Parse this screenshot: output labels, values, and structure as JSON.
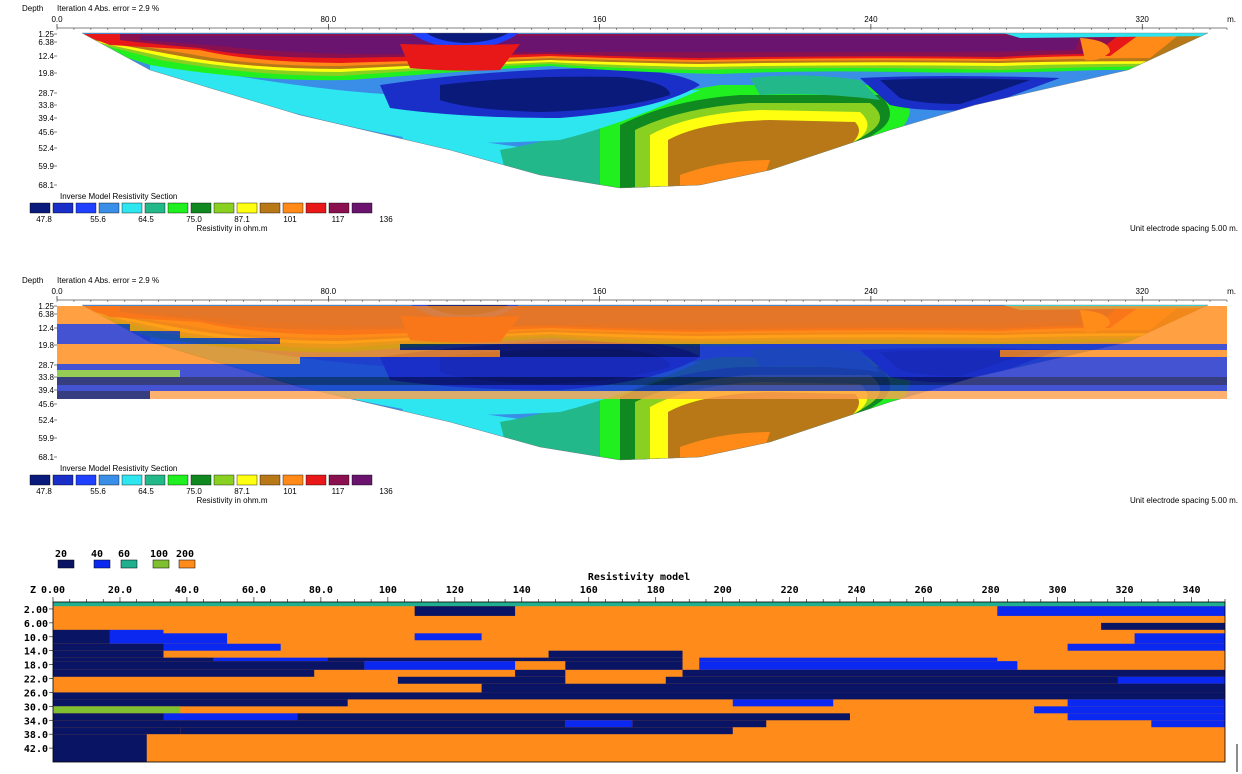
{
  "chart_data": [
    {
      "type": "heatmap",
      "header_depth": "Depth",
      "header_iter": "Iteration 4 Abs. error = 2.9 %",
      "x_ticks": [
        "0.0",
        "80.0",
        "160",
        "240",
        "320"
      ],
      "x_unit": "m.",
      "depth_ticks": [
        "1.25",
        "6.38",
        "12.4",
        "19.8",
        "28.7",
        "33.8",
        "39.4",
        "45.6",
        "52.4",
        "59.9",
        "68.1"
      ],
      "legend_title": "Inverse Model Resistivity Section",
      "legend_labels": [
        "47.8",
        "55.6",
        "64.5",
        "75.0",
        "87.1",
        "101",
        "117",
        "136"
      ],
      "legend_caption": "Resistivity in ohm.m",
      "spacing_note": "Unit electrode spacing 5.00 m.",
      "colors": [
        "#0a1a7a",
        "#1a2ec8",
        "#2040ff",
        "#3a8ee8",
        "#2ee6f0",
        "#22b88a",
        "#20f020",
        "#108a20",
        "#8ad020",
        "#ffff10",
        "#b87818",
        "#ff8a18",
        "#e81818",
        "#8a1050",
        "#6a1470"
      ],
      "overlay": false
    },
    {
      "type": "heatmap",
      "header_depth": "Depth",
      "header_iter": "Iteration 4 Abs. error = 2.9 %",
      "x_ticks": [
        "0.0",
        "80.0",
        "160",
        "240",
        "320"
      ],
      "x_unit": "m.",
      "depth_ticks": [
        "1.25",
        "6.38",
        "12.4",
        "19.8",
        "28.7",
        "33.8",
        "39.4",
        "45.6",
        "52.4",
        "59.9",
        "68.1"
      ],
      "legend_title": "Inverse Model Resistivity Section",
      "legend_labels": [
        "47.8",
        "55.6",
        "64.5",
        "75.0",
        "87.1",
        "101",
        "117",
        "136"
      ],
      "legend_caption": "Resistivity in ohm.m",
      "spacing_note": "Unit electrode spacing 5.00 m.",
      "colors": [
        "#0a1a7a",
        "#1a2ec8",
        "#2040ff",
        "#3a8ee8",
        "#2ee6f0",
        "#22b88a",
        "#20f020",
        "#108a20",
        "#8ad020",
        "#ffff10",
        "#b87818",
        "#ff8a18",
        "#e81818",
        "#8a1050",
        "#6a1470"
      ],
      "overlay": true
    },
    {
      "type": "heatmap",
      "title": "Resistivity model",
      "legend_values": [
        "20",
        "40",
        "60",
        "100",
        "200"
      ],
      "legend_colors": [
        "#0a1464",
        "#0a28f0",
        "#20b090",
        "#80c030",
        "#ff8c1a"
      ],
      "z_label": "Z",
      "x_ticks": [
        "0.00",
        "20.0",
        "40.0",
        "60.0",
        "80.0",
        "100",
        "120",
        "140",
        "160",
        "180",
        "200",
        "220",
        "240",
        "260",
        "280",
        "300",
        "320",
        "340"
      ],
      "x_range": [
        0,
        350
      ],
      "z_ticks": [
        "2.00",
        "6.00",
        "10.0",
        "14.0",
        "18.0",
        "22.0",
        "26.0",
        "30.0",
        "34.0",
        "38.0",
        "42.0"
      ],
      "z_range": [
        0,
        46
      ],
      "background_value": "200",
      "blocks": [
        {
          "x0": 0,
          "x1": 350,
          "z0": 0,
          "z1": 1.2,
          "v": "60"
        },
        {
          "x0": 108,
          "x1": 138,
          "z0": 1.2,
          "z1": 4,
          "v": "20"
        },
        {
          "x0": 282,
          "x1": 350,
          "z0": 1.2,
          "z1": 4,
          "v": "40"
        },
        {
          "x0": 313,
          "x1": 350,
          "z0": 6,
          "z1": 8,
          "v": "20"
        },
        {
          "x0": 0,
          "x1": 17,
          "z0": 8,
          "z1": 12,
          "v": "20"
        },
        {
          "x0": 17,
          "x1": 33,
          "z0": 8,
          "z1": 12,
          "v": "40"
        },
        {
          "x0": 33,
          "x1": 52,
          "z0": 9,
          "z1": 12,
          "v": "40"
        },
        {
          "x0": 108,
          "x1": 128,
          "z0": 9,
          "z1": 11,
          "v": "40"
        },
        {
          "x0": 323,
          "x1": 350,
          "z0": 9,
          "z1": 12,
          "v": "40"
        },
        {
          "x0": 0,
          "x1": 33,
          "z0": 12,
          "z1": 14,
          "v": "20"
        },
        {
          "x0": 33,
          "x1": 68,
          "z0": 12,
          "z1": 14,
          "v": "40"
        },
        {
          "x0": 303,
          "x1": 350,
          "z0": 12,
          "z1": 14,
          "v": "40"
        },
        {
          "x0": 0,
          "x1": 33,
          "z0": 14,
          "z1": 16,
          "v": "20"
        },
        {
          "x0": 148,
          "x1": 188,
          "z0": 14,
          "z1": 16,
          "v": "20"
        },
        {
          "x0": 0,
          "x1": 48,
          "z0": 16,
          "z1": 17,
          "v": "20"
        },
        {
          "x0": 48,
          "x1": 82,
          "z0": 16,
          "z1": 17,
          "v": "40"
        },
        {
          "x0": 82,
          "x1": 148,
          "z0": 16,
          "z1": 17,
          "v": "20"
        },
        {
          "x0": 148,
          "x1": 188,
          "z0": 16,
          "z1": 17,
          "v": "20"
        },
        {
          "x0": 193,
          "x1": 282,
          "z0": 16,
          "z1": 17,
          "v": "40"
        },
        {
          "x0": 0,
          "x1": 93,
          "z0": 17,
          "z1": 19.5,
          "v": "20"
        },
        {
          "x0": 93,
          "x1": 138,
          "z0": 17,
          "z1": 19.5,
          "v": "40"
        },
        {
          "x0": 153,
          "x1": 188,
          "z0": 17,
          "z1": 19.5,
          "v": "20"
        },
        {
          "x0": 193,
          "x1": 288,
          "z0": 17,
          "z1": 19.5,
          "v": "40"
        },
        {
          "x0": 0,
          "x1": 78,
          "z0": 19.5,
          "z1": 21.5,
          "v": "20"
        },
        {
          "x0": 138,
          "x1": 153,
          "z0": 19.5,
          "z1": 21.5,
          "v": "20"
        },
        {
          "x0": 188,
          "x1": 350,
          "z0": 19.5,
          "z1": 21.5,
          "v": "20"
        },
        {
          "x0": 103,
          "x1": 153,
          "z0": 21.5,
          "z1": 23.5,
          "v": "20"
        },
        {
          "x0": 183,
          "x1": 350,
          "z0": 21.5,
          "z1": 23.5,
          "v": "20"
        },
        {
          "x0": 318,
          "x1": 350,
          "z0": 21.5,
          "z1": 23.5,
          "v": "40"
        },
        {
          "x0": 128,
          "x1": 350,
          "z0": 23.5,
          "z1": 26,
          "v": "20"
        },
        {
          "x0": 0,
          "x1": 350,
          "z0": 26,
          "z1": 28,
          "v": "20"
        },
        {
          "x0": 203,
          "x1": 233,
          "z0": 28,
          "z1": 30,
          "v": "40"
        },
        {
          "x0": 0,
          "x1": 88,
          "z0": 28,
          "z1": 30,
          "v": "20"
        },
        {
          "x0": 303,
          "x1": 350,
          "z0": 28,
          "z1": 30,
          "v": "40"
        },
        {
          "x0": 0,
          "x1": 38,
          "z0": 30,
          "z1": 32,
          "v": "100"
        },
        {
          "x0": 293,
          "x1": 350,
          "z0": 30,
          "z1": 32,
          "v": "40"
        },
        {
          "x0": 0,
          "x1": 33,
          "z0": 32,
          "z1": 34,
          "v": "20"
        },
        {
          "x0": 33,
          "x1": 73,
          "z0": 32,
          "z1": 34,
          "v": "40"
        },
        {
          "x0": 73,
          "x1": 238,
          "z0": 32,
          "z1": 34,
          "v": "20"
        },
        {
          "x0": 303,
          "x1": 350,
          "z0": 32,
          "z1": 34,
          "v": "40"
        },
        {
          "x0": 0,
          "x1": 153,
          "z0": 34,
          "z1": 36,
          "v": "20"
        },
        {
          "x0": 153,
          "x1": 173,
          "z0": 34,
          "z1": 36,
          "v": "40"
        },
        {
          "x0": 173,
          "x1": 213,
          "z0": 34,
          "z1": 36,
          "v": "20"
        },
        {
          "x0": 328,
          "x1": 350,
          "z0": 34,
          "z1": 36,
          "v": "40"
        },
        {
          "x0": 0,
          "x1": 38,
          "z0": 36,
          "z1": 38,
          "v": "20"
        },
        {
          "x0": 38,
          "x1": 203,
          "z0": 36,
          "z1": 38,
          "v": "20"
        },
        {
          "x0": 0,
          "x1": 28,
          "z0": 38,
          "z1": 46,
          "v": "20"
        }
      ]
    }
  ]
}
